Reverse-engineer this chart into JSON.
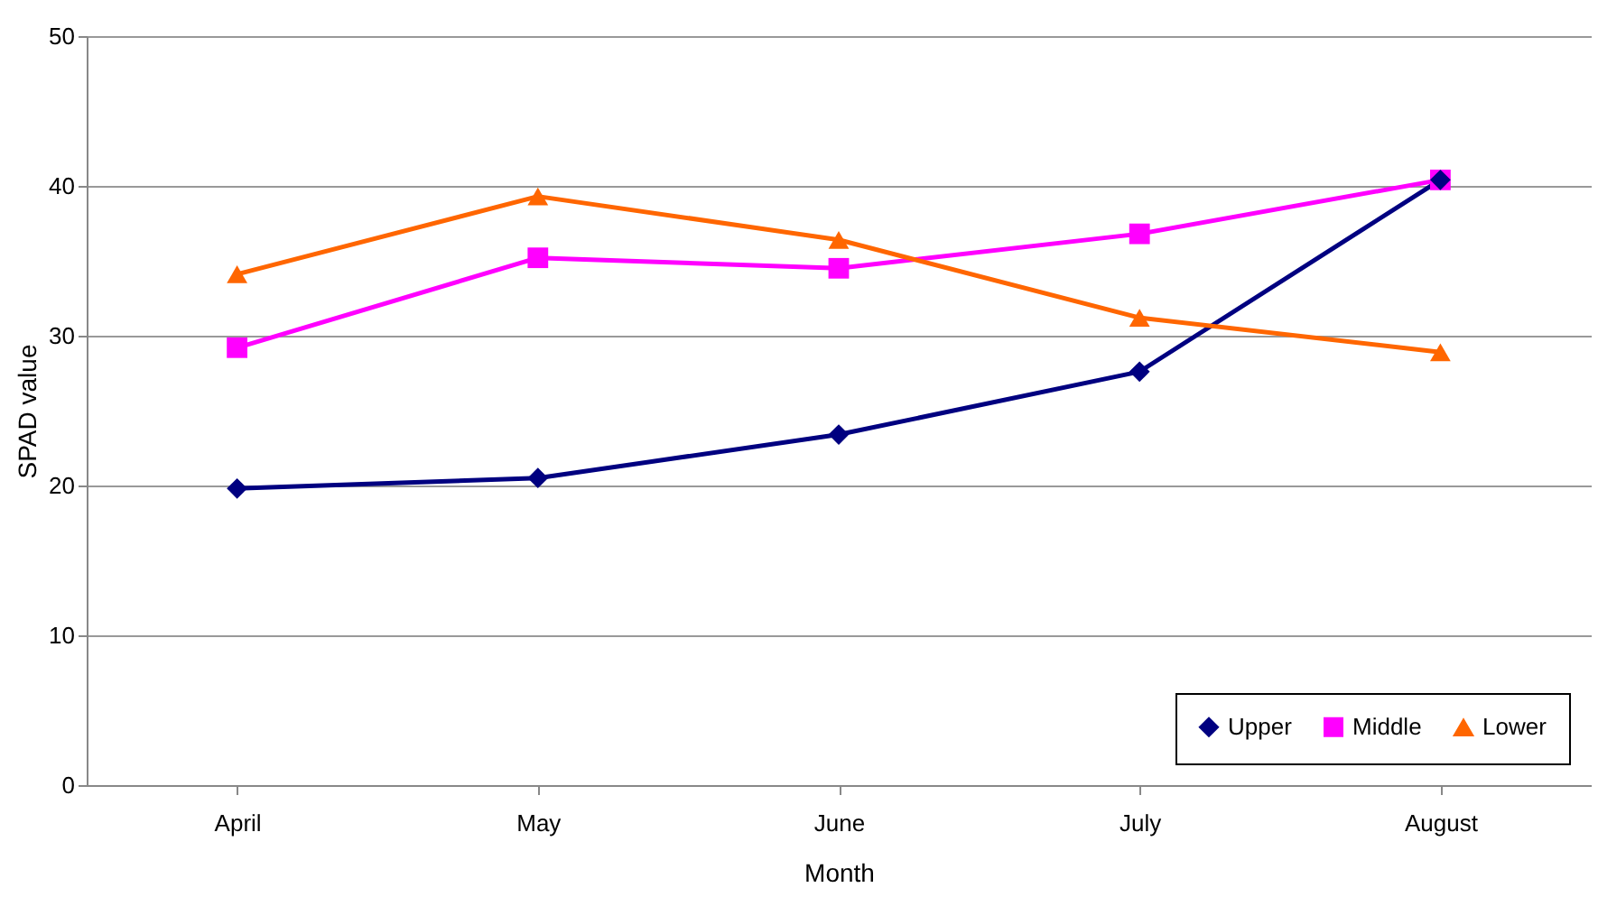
{
  "chart_data": {
    "type": "line",
    "xlabel": "Month",
    "ylabel": "SPAD value",
    "categories": [
      "April",
      "May",
      "June",
      "July",
      "August"
    ],
    "series": [
      {
        "name": "Upper",
        "color": "#000080",
        "marker": "diamond",
        "values": [
          19.8,
          20.5,
          23.4,
          27.6,
          40.4
        ]
      },
      {
        "name": "Middle",
        "color": "#ff00ff",
        "marker": "square",
        "values": [
          29.2,
          35.2,
          34.5,
          36.8,
          40.4
        ]
      },
      {
        "name": "Lower",
        "color": "#ff6600",
        "marker": "triangle",
        "values": [
          34.1,
          39.3,
          36.4,
          31.2,
          28.9
        ]
      }
    ],
    "ylim": [
      0,
      50
    ],
    "yticks": [
      0,
      10,
      20,
      30,
      40,
      50
    ],
    "grid": "y",
    "legend": "bottom right"
  }
}
